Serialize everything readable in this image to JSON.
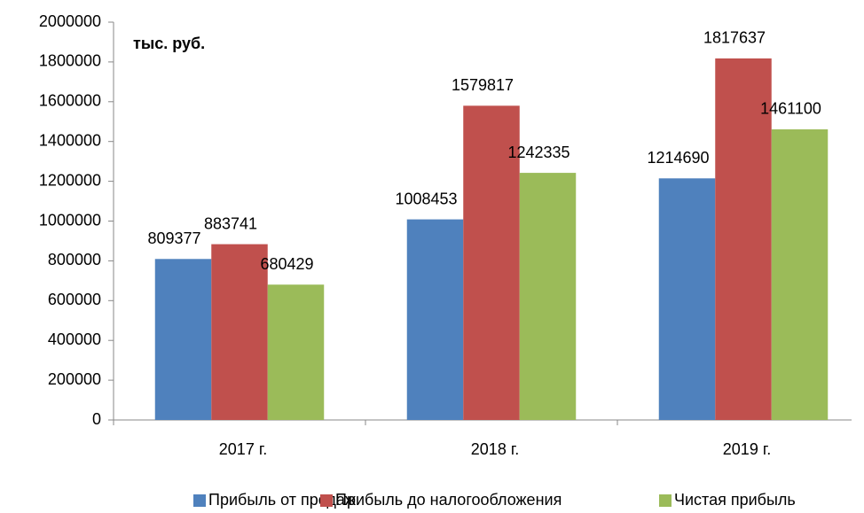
{
  "chart_data": {
    "type": "bar",
    "annotation": "тыс. руб.",
    "categories": [
      "2017 г.",
      "2018 г.",
      "2019 г."
    ],
    "series": [
      {
        "name": "Прибыль от продаж",
        "color": "#4f81bd",
        "values": [
          809377,
          1008453,
          1214690
        ]
      },
      {
        "name": "Прибыль до налогообложения",
        "color": "#c0504d",
        "values": [
          883741,
          1579817,
          1817637
        ]
      },
      {
        "name": "Чистая прибыль",
        "color": "#9bbb59",
        "values": [
          680429,
          1242335,
          1461100
        ]
      }
    ],
    "ylim": [
      0,
      2000000
    ],
    "yticks": [
      0,
      200000,
      400000,
      600000,
      800000,
      1000000,
      1200000,
      1400000,
      1600000,
      1800000,
      2000000
    ],
    "grid": false,
    "legend": "bottom"
  }
}
